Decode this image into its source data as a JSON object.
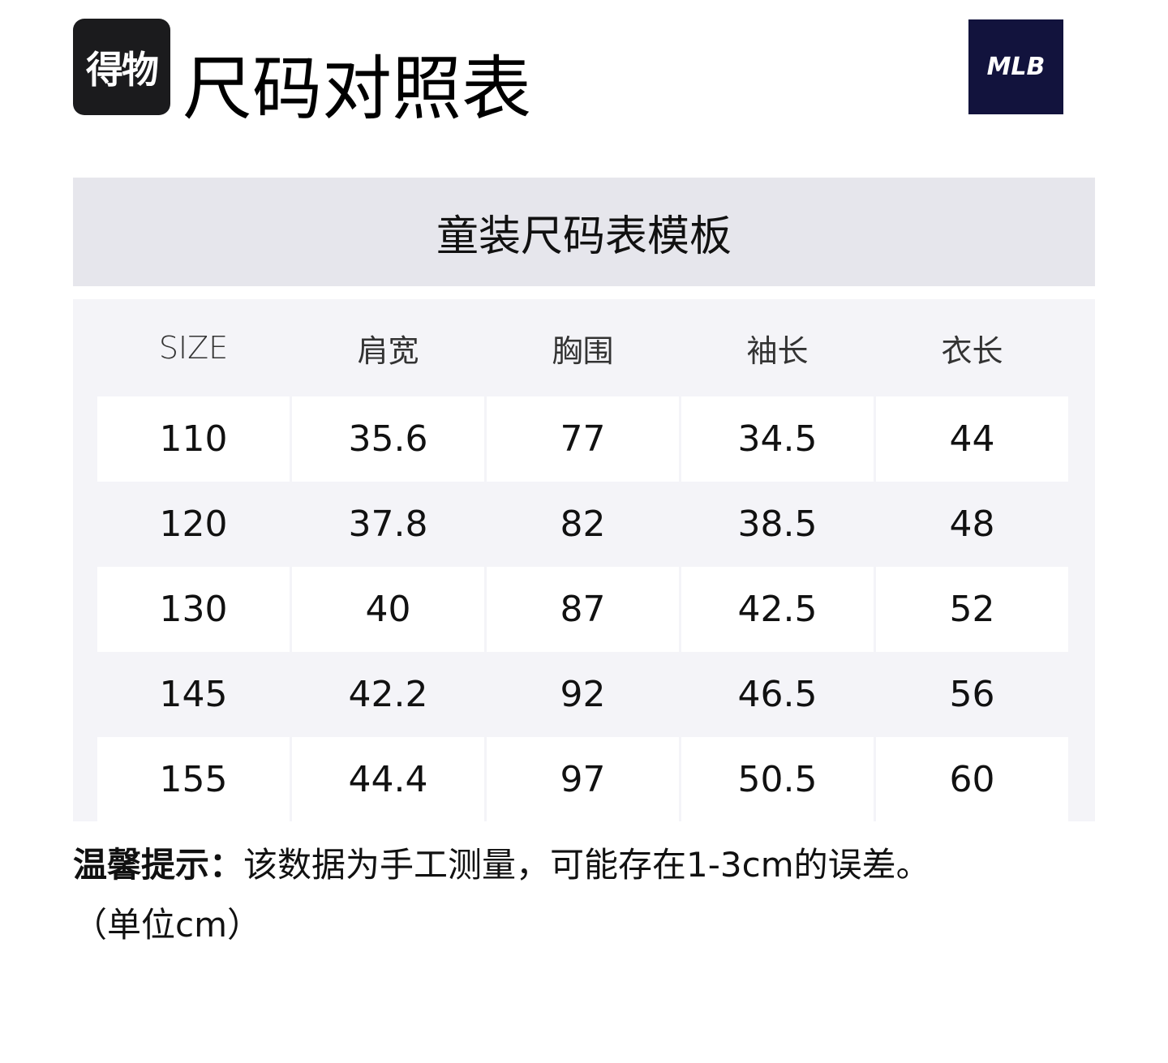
{
  "header": {
    "logo_text": "得物",
    "title": "尺码对照表",
    "brand_logo": "MLB"
  },
  "table": {
    "caption": "童装尺码表模板",
    "columns": [
      "SIZE",
      "肩宽",
      "胸围",
      "袖长",
      "衣长"
    ],
    "rows": [
      [
        "110",
        "35.6",
        "77",
        "34.5",
        "44"
      ],
      [
        "120",
        "37.8",
        "82",
        "38.5",
        "48"
      ],
      [
        "130",
        "40",
        "87",
        "42.5",
        "52"
      ],
      [
        "145",
        "42.2",
        "92",
        "46.5",
        "56"
      ],
      [
        "155",
        "44.4",
        "97",
        "50.5",
        "60"
      ]
    ]
  },
  "note": {
    "label": "温馨提示：",
    "text": "该数据为手工测量，可能存在1-3cm的误差。",
    "unit": "（单位cm）"
  }
}
